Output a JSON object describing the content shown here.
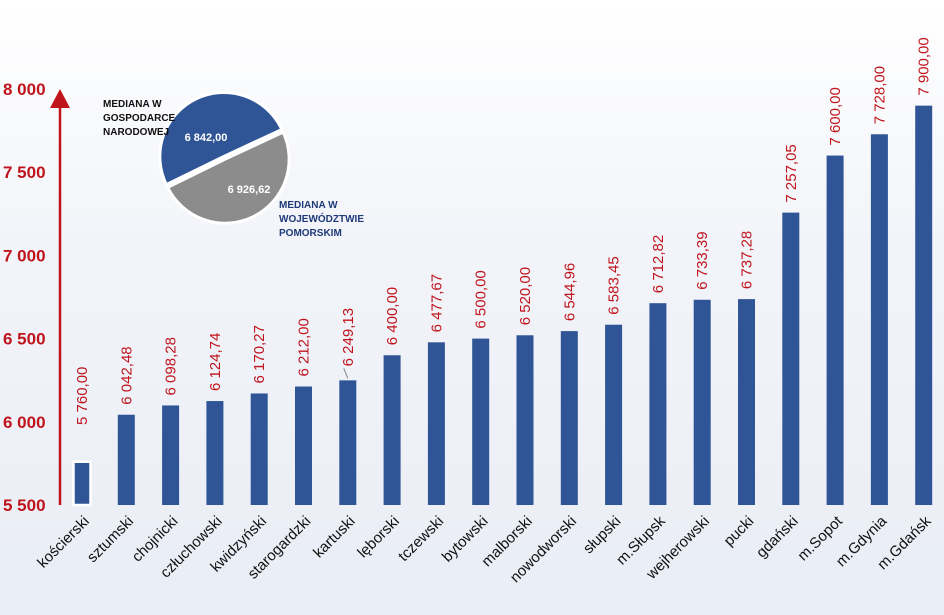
{
  "chart_data": {
    "type": "bar",
    "title": "",
    "xlabel": "",
    "ylabel": "",
    "categories": [
      "kościerski",
      "sztumski",
      "chojnicki",
      "człuchowski",
      "kwidzyński",
      "starogardzki",
      "kartuski",
      "lęborski",
      "tczewski",
      "bytowski",
      "malborski",
      "nowodworski",
      "słupski",
      "m.Słupsk",
      "wejherowski",
      "pucki",
      "gdański",
      "m.Sopot",
      "m.Gdynia",
      "m.Gdańsk"
    ],
    "values": [
      5760.0,
      6042.48,
      6098.28,
      6124.74,
      6170.27,
      6212.0,
      6249.13,
      6400.0,
      6477.67,
      6500.0,
      6520.0,
      6544.96,
      6583.45,
      6712.82,
      6733.39,
      6737.28,
      7257.05,
      7600.0,
      7728.0,
      7900.0
    ],
    "value_labels": [
      "5 760,00",
      "6 042,48",
      "6 098,28",
      "6 124,74",
      "6 170,27",
      "6 212,00",
      "6 249,13",
      "6 400,00",
      "6 477,67",
      "6 500,00",
      "6 520,00",
      "6 544,96",
      "6 583,45",
      "6 712,82",
      "6 733,39",
      "6 737,28",
      "7 257,05",
      "7 600,00",
      "7 728,00",
      "7 900,00"
    ],
    "ylim": [
      5500,
      8000
    ],
    "yticks": [
      5500,
      6000,
      6500,
      7000,
      7500,
      8000
    ],
    "ytick_labels": [
      "5 500",
      "6 000",
      "6 500",
      "7 000",
      "7 500",
      "8 000"
    ],
    "bar_color": "#2f5597",
    "label_color": "#c0141c",
    "grid": false
  },
  "inset_pie": {
    "type": "pie",
    "slices": [
      {
        "label_lines": [
          "MEDIANA W",
          "GOSPODARCE",
          "NARODOWEJ"
        ],
        "value": 6842.0,
        "value_label": "6 842,00",
        "color": "#8c8c8c"
      },
      {
        "label_lines": [
          "MEDIANA W",
          "WOJEWÓDZTWIE",
          "POMORSKIM"
        ],
        "value": 6926.62,
        "value_label": "6 926,62",
        "color": "#2f5597"
      }
    ]
  }
}
